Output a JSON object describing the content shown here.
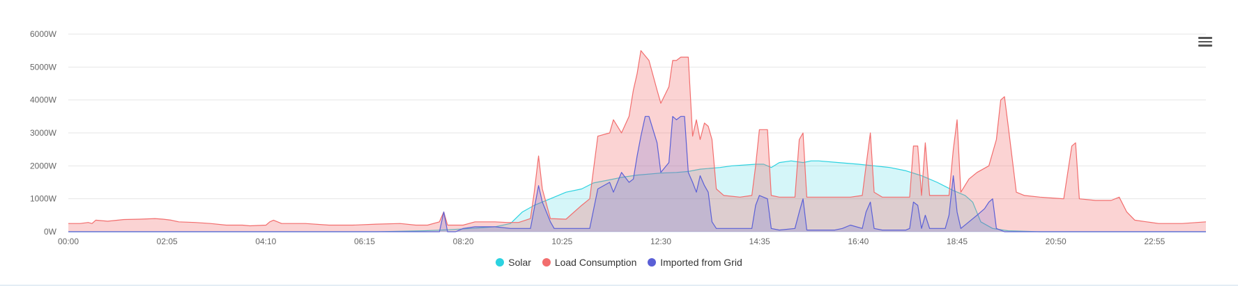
{
  "chart_data": {
    "type": "area",
    "xlabel": "",
    "ylabel": "",
    "ylim": [
      0,
      6000
    ],
    "y_ticks": [
      "0W",
      "1000W",
      "2000W",
      "3000W",
      "4000W",
      "5000W",
      "6000W"
    ],
    "x_ticks": [
      "00:00",
      "02:05",
      "04:10",
      "06:15",
      "08:20",
      "10:25",
      "12:30",
      "14:35",
      "16:40",
      "18:45",
      "20:50",
      "22:55"
    ],
    "x_range_hours": [
      0,
      24
    ],
    "grid": true,
    "legend_position": "bottom-center",
    "series": [
      {
        "name": "Solar",
        "color": "#2bd2e0",
        "fill": "rgba(43,210,224,0.2)",
        "points": [
          [
            0,
            0
          ],
          [
            6.5,
            0
          ],
          [
            7.5,
            30
          ],
          [
            8.0,
            60
          ],
          [
            8.5,
            100
          ],
          [
            9.0,
            150
          ],
          [
            9.33,
            250
          ],
          [
            9.58,
            600
          ],
          [
            9.83,
            800
          ],
          [
            10.25,
            1050
          ],
          [
            10.5,
            1200
          ],
          [
            10.83,
            1300
          ],
          [
            11.08,
            1480
          ],
          [
            11.33,
            1550
          ],
          [
            11.67,
            1650
          ],
          [
            12.0,
            1720
          ],
          [
            12.5,
            1780
          ],
          [
            12.83,
            1800
          ],
          [
            13.08,
            1830
          ],
          [
            13.33,
            1900
          ],
          [
            13.75,
            1950
          ],
          [
            14.0,
            2000
          ],
          [
            14.5,
            2050
          ],
          [
            14.67,
            2050
          ],
          [
            14.83,
            1950
          ],
          [
            15.0,
            2100
          ],
          [
            15.25,
            2150
          ],
          [
            15.5,
            2100
          ],
          [
            15.67,
            2150
          ],
          [
            15.83,
            2150
          ],
          [
            16.25,
            2100
          ],
          [
            16.67,
            2050
          ],
          [
            17.0,
            2000
          ],
          [
            17.33,
            1950
          ],
          [
            17.67,
            1850
          ],
          [
            18.0,
            1700
          ],
          [
            18.33,
            1500
          ],
          [
            18.67,
            1250
          ],
          [
            18.92,
            1100
          ],
          [
            19.08,
            900
          ],
          [
            19.25,
            300
          ],
          [
            19.5,
            100
          ],
          [
            19.83,
            30
          ],
          [
            20.5,
            0
          ],
          [
            24,
            0
          ]
        ]
      },
      {
        "name": "Load Consumption",
        "color": "#f26d6d",
        "fill": "rgba(242,109,109,0.3)",
        "points": [
          [
            0,
            250
          ],
          [
            0.25,
            250
          ],
          [
            0.42,
            280
          ],
          [
            0.5,
            250
          ],
          [
            0.58,
            350
          ],
          [
            0.83,
            320
          ],
          [
            1.17,
            370
          ],
          [
            1.5,
            380
          ],
          [
            1.83,
            400
          ],
          [
            2.0,
            380
          ],
          [
            2.17,
            350
          ],
          [
            2.33,
            300
          ],
          [
            2.67,
            280
          ],
          [
            3.0,
            250
          ],
          [
            3.33,
            200
          ],
          [
            3.67,
            200
          ],
          [
            3.83,
            180
          ],
          [
            4.17,
            200
          ],
          [
            4.25,
            300
          ],
          [
            4.33,
            350
          ],
          [
            4.5,
            250
          ],
          [
            5.0,
            250
          ],
          [
            5.5,
            200
          ],
          [
            6.0,
            200
          ],
          [
            6.5,
            230
          ],
          [
            7.0,
            250
          ],
          [
            7.33,
            200
          ],
          [
            7.58,
            200
          ],
          [
            7.83,
            300
          ],
          [
            7.92,
            600
          ],
          [
            8.0,
            200
          ],
          [
            8.33,
            200
          ],
          [
            8.58,
            300
          ],
          [
            9.0,
            300
          ],
          [
            9.25,
            280
          ],
          [
            9.5,
            280
          ],
          [
            9.75,
            400
          ],
          [
            9.83,
            1200
          ],
          [
            9.92,
            2300
          ],
          [
            10.0,
            1300
          ],
          [
            10.17,
            400
          ],
          [
            10.5,
            380
          ],
          [
            10.83,
            800
          ],
          [
            11.0,
            1000
          ],
          [
            11.17,
            2900
          ],
          [
            11.42,
            3000
          ],
          [
            11.5,
            3400
          ],
          [
            11.67,
            3000
          ],
          [
            11.83,
            3500
          ],
          [
            11.92,
            4300
          ],
          [
            12.0,
            4800
          ],
          [
            12.08,
            5500
          ],
          [
            12.25,
            5200
          ],
          [
            12.42,
            4300
          ],
          [
            12.5,
            3900
          ],
          [
            12.67,
            4400
          ],
          [
            12.75,
            5200
          ],
          [
            12.83,
            5200
          ],
          [
            12.92,
            5300
          ],
          [
            13.0,
            5300
          ],
          [
            13.08,
            5300
          ],
          [
            13.17,
            2900
          ],
          [
            13.25,
            3400
          ],
          [
            13.33,
            2800
          ],
          [
            13.42,
            3300
          ],
          [
            13.5,
            3200
          ],
          [
            13.58,
            2800
          ],
          [
            13.67,
            1300
          ],
          [
            13.83,
            1100
          ],
          [
            14.17,
            1050
          ],
          [
            14.42,
            1100
          ],
          [
            14.5,
            2000
          ],
          [
            14.58,
            3100
          ],
          [
            14.75,
            3100
          ],
          [
            14.83,
            1100
          ],
          [
            15.0,
            1050
          ],
          [
            15.33,
            1050
          ],
          [
            15.42,
            2800
          ],
          [
            15.5,
            3000
          ],
          [
            15.58,
            1050
          ],
          [
            16.0,
            1050
          ],
          [
            16.17,
            1050
          ],
          [
            16.5,
            1050
          ],
          [
            16.75,
            1100
          ],
          [
            16.83,
            2000
          ],
          [
            16.92,
            3000
          ],
          [
            17.0,
            1200
          ],
          [
            17.17,
            1050
          ],
          [
            17.67,
            1050
          ],
          [
            17.75,
            1050
          ],
          [
            17.83,
            2600
          ],
          [
            17.92,
            2600
          ],
          [
            18.0,
            1100
          ],
          [
            18.08,
            2700
          ],
          [
            18.17,
            1100
          ],
          [
            18.58,
            1100
          ],
          [
            18.67,
            2500
          ],
          [
            18.75,
            3400
          ],
          [
            18.83,
            1200
          ],
          [
            19.0,
            1600
          ],
          [
            19.17,
            1800
          ],
          [
            19.42,
            2000
          ],
          [
            19.58,
            2800
          ],
          [
            19.67,
            4000
          ],
          [
            19.75,
            4100
          ],
          [
            19.83,
            3200
          ],
          [
            20.0,
            1200
          ],
          [
            20.17,
            1100
          ],
          [
            20.5,
            1050
          ],
          [
            21.0,
            1000
          ],
          [
            21.17,
            2600
          ],
          [
            21.25,
            2700
          ],
          [
            21.33,
            1000
          ],
          [
            21.67,
            950
          ],
          [
            22.0,
            950
          ],
          [
            22.17,
            1050
          ],
          [
            22.33,
            600
          ],
          [
            22.5,
            350
          ],
          [
            22.75,
            300
          ],
          [
            23.0,
            250
          ],
          [
            23.5,
            250
          ],
          [
            24,
            300
          ]
        ]
      },
      {
        "name": "Imported from Grid",
        "color": "#5a5fd6",
        "fill": "rgba(90,95,214,0.2)",
        "points": [
          [
            0,
            0
          ],
          [
            7.5,
            0
          ],
          [
            7.83,
            0
          ],
          [
            7.92,
            600
          ],
          [
            8.0,
            0
          ],
          [
            8.17,
            0
          ],
          [
            8.33,
            100
          ],
          [
            8.58,
            150
          ],
          [
            9.0,
            150
          ],
          [
            9.33,
            100
          ],
          [
            9.58,
            100
          ],
          [
            9.75,
            100
          ],
          [
            9.83,
            700
          ],
          [
            9.92,
            1400
          ],
          [
            10.0,
            900
          ],
          [
            10.17,
            300
          ],
          [
            10.25,
            100
          ],
          [
            10.83,
            100
          ],
          [
            11.0,
            100
          ],
          [
            11.17,
            1300
          ],
          [
            11.42,
            1500
          ],
          [
            11.5,
            1200
          ],
          [
            11.67,
            1800
          ],
          [
            11.83,
            1500
          ],
          [
            11.92,
            1600
          ],
          [
            12.0,
            2300
          ],
          [
            12.08,
            2900
          ],
          [
            12.17,
            3500
          ],
          [
            12.25,
            3500
          ],
          [
            12.42,
            2700
          ],
          [
            12.5,
            1800
          ],
          [
            12.67,
            2100
          ],
          [
            12.75,
            3500
          ],
          [
            12.83,
            3400
          ],
          [
            12.92,
            3500
          ],
          [
            13.0,
            3500
          ],
          [
            13.08,
            1800
          ],
          [
            13.17,
            1500
          ],
          [
            13.25,
            1200
          ],
          [
            13.33,
            1700
          ],
          [
            13.42,
            1400
          ],
          [
            13.5,
            1200
          ],
          [
            13.58,
            300
          ],
          [
            13.67,
            100
          ],
          [
            14.0,
            100
          ],
          [
            14.42,
            100
          ],
          [
            14.5,
            800
          ],
          [
            14.58,
            1100
          ],
          [
            14.75,
            1000
          ],
          [
            14.83,
            100
          ],
          [
            15.0,
            50
          ],
          [
            15.33,
            100
          ],
          [
            15.42,
            600
          ],
          [
            15.5,
            1000
          ],
          [
            15.58,
            50
          ],
          [
            16.0,
            50
          ],
          [
            16.17,
            50
          ],
          [
            16.33,
            100
          ],
          [
            16.5,
            200
          ],
          [
            16.75,
            100
          ],
          [
            16.83,
            600
          ],
          [
            16.92,
            900
          ],
          [
            17.0,
            100
          ],
          [
            17.17,
            50
          ],
          [
            17.67,
            50
          ],
          [
            17.75,
            100
          ],
          [
            17.83,
            900
          ],
          [
            17.92,
            800
          ],
          [
            18.0,
            100
          ],
          [
            18.08,
            500
          ],
          [
            18.17,
            100
          ],
          [
            18.5,
            100
          ],
          [
            18.58,
            500
          ],
          [
            18.67,
            1700
          ],
          [
            18.75,
            600
          ],
          [
            18.83,
            100
          ],
          [
            19.0,
            300
          ],
          [
            19.17,
            500
          ],
          [
            19.33,
            700
          ],
          [
            19.42,
            900
          ],
          [
            19.5,
            1000
          ],
          [
            19.58,
            100
          ],
          [
            19.75,
            0
          ],
          [
            24,
            0
          ]
        ]
      }
    ]
  },
  "toolbar": {
    "menu_icon": "hamburger-menu-icon"
  }
}
